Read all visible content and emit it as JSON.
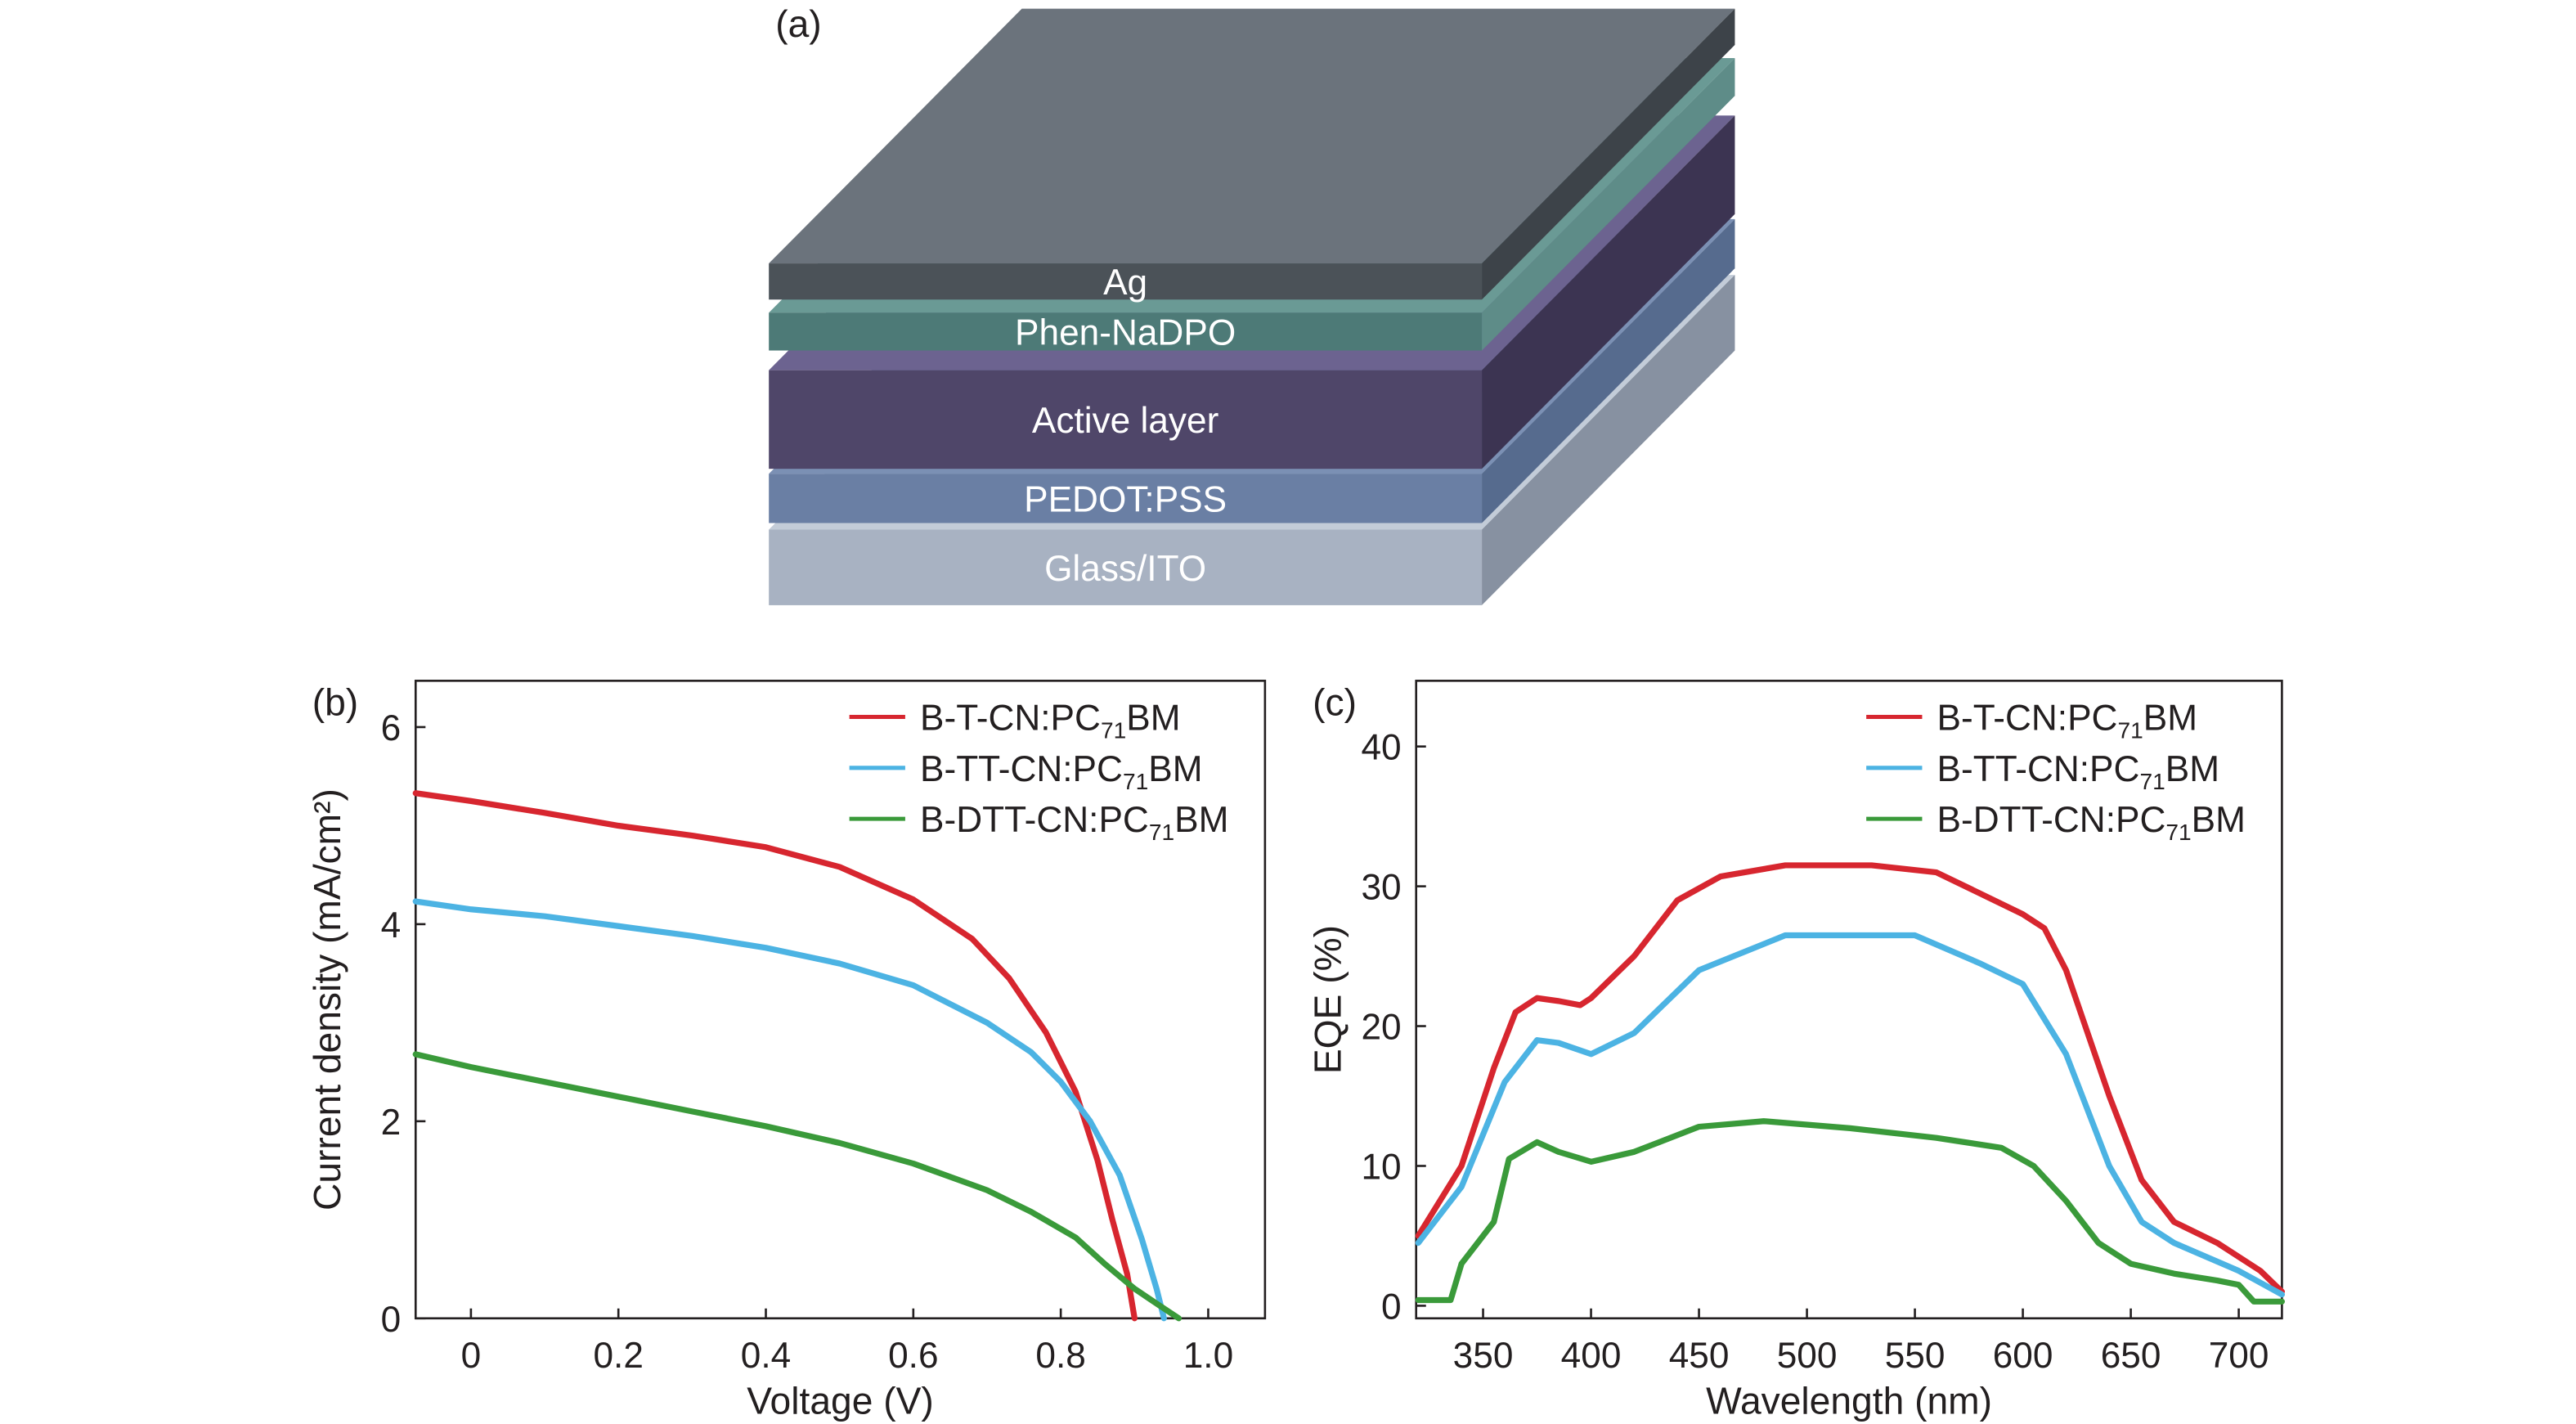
{
  "panel_a": {
    "label": "(a)",
    "layers": [
      {
        "name": "Ag",
        "front": "#4b5258",
        "side": "#3d4349",
        "top": "#6b737c"
      },
      {
        "name": "Phen-NaDPO",
        "front": "#4d7a77",
        "side": "#5e8c88",
        "top": "#6a9a95"
      },
      {
        "name": "Active layer",
        "front": "#4f4669",
        "side": "#3c3452",
        "top": "#6c6390"
      },
      {
        "name": "PEDOT:PSS",
        "front": "#6a7fa4",
        "side": "#566b8e",
        "top": "#7b90b4"
      },
      {
        "name": "Glass/ITO",
        "front": "#a8b2c2",
        "side": "#8791a1",
        "top": "#c3ccd8"
      }
    ]
  },
  "chart_data": [
    {
      "panel_label": "(b)",
      "type": "line",
      "xlabel": "Voltage (V)",
      "ylabel": "Current density (mA/cm²)",
      "xlim": [
        -0.075,
        1.077
      ],
      "ylim": [
        0,
        6.47
      ],
      "xticks": [
        "0",
        "0.2",
        "0.4",
        "0.6",
        "0.8",
        "1.0"
      ],
      "xtick_values": [
        0,
        0.2,
        0.4,
        0.6,
        0.8,
        1.0
      ],
      "yticks": [
        "0",
        "2",
        "4",
        "6"
      ],
      "ytick_values": [
        0,
        2,
        4,
        6
      ],
      "legend": "top-right",
      "grid": false,
      "series": [
        {
          "name": "B-T-CN:PC71BM",
          "name_pre": "B-T-CN:PC",
          "name_sub": "71",
          "name_post": "BM",
          "color": "#d7262f",
          "x": [
            -0.075,
            0,
            0.1,
            0.2,
            0.3,
            0.4,
            0.5,
            0.6,
            0.68,
            0.73,
            0.78,
            0.82,
            0.85,
            0.87,
            0.89,
            0.9
          ],
          "y": [
            5.33,
            5.25,
            5.13,
            5.0,
            4.9,
            4.78,
            4.58,
            4.25,
            3.85,
            3.45,
            2.9,
            2.3,
            1.6,
            1.0,
            0.45,
            0
          ]
        },
        {
          "name": "B-TT-CN:PC71BM",
          "name_pre": "B-TT-CN:PC",
          "name_sub": "71",
          "name_post": "BM",
          "color": "#4cb3e3",
          "x": [
            -0.075,
            0,
            0.1,
            0.2,
            0.3,
            0.4,
            0.5,
            0.6,
            0.7,
            0.76,
            0.8,
            0.84,
            0.88,
            0.91,
            0.93,
            0.94
          ],
          "y": [
            4.23,
            4.15,
            4.08,
            3.98,
            3.88,
            3.76,
            3.6,
            3.38,
            3.0,
            2.7,
            2.4,
            2.0,
            1.45,
            0.8,
            0.3,
            0
          ]
        },
        {
          "name": "B-DTT-CN:PC71BM",
          "name_pre": "B-DTT-CN:PC",
          "name_sub": "71",
          "name_post": "BM",
          "color": "#3a9a3a",
          "x": [
            -0.075,
            0,
            0.1,
            0.2,
            0.3,
            0.4,
            0.5,
            0.6,
            0.7,
            0.76,
            0.82,
            0.86,
            0.9,
            0.93,
            0.96
          ],
          "y": [
            2.68,
            2.55,
            2.4,
            2.25,
            2.1,
            1.95,
            1.78,
            1.57,
            1.3,
            1.08,
            0.82,
            0.55,
            0.3,
            0.15,
            0
          ]
        }
      ]
    },
    {
      "panel_label": "(c)",
      "type": "line",
      "xlabel": "Wavelength (nm)",
      "ylabel": "EQE (%)",
      "xlim": [
        319,
        720
      ],
      "ylim": [
        -0.9,
        44.7
      ],
      "xticks": [
        "350",
        "400",
        "450",
        "500",
        "550",
        "600",
        "650",
        "700"
      ],
      "xtick_values": [
        350,
        400,
        450,
        500,
        550,
        600,
        650,
        700
      ],
      "yticks": [
        "0",
        "10",
        "20",
        "30",
        "40"
      ],
      "ytick_values": [
        0,
        10,
        20,
        30,
        40
      ],
      "legend": "top-right",
      "grid": false,
      "series": [
        {
          "name": "B-T-CN:PC71BM",
          "name_pre": "B-T-CN:PC",
          "name_sub": "71",
          "name_post": "BM",
          "color": "#d7262f",
          "x": [
            320,
            340,
            355,
            365,
            375,
            385,
            395,
            400,
            420,
            440,
            460,
            490,
            530,
            560,
            580,
            600,
            610,
            620,
            640,
            655,
            670,
            690,
            710,
            720
          ],
          "y": [
            5,
            10,
            17,
            21,
            22,
            21.8,
            21.5,
            22,
            25,
            29,
            30.7,
            31.5,
            31.5,
            31,
            29.5,
            28,
            27,
            24,
            15,
            9,
            6,
            4.5,
            2.5,
            1
          ]
        },
        {
          "name": "B-TT-CN:PC71BM",
          "name_pre": "B-TT-CN:PC",
          "name_sub": "71",
          "name_post": "BM",
          "color": "#4cb3e3",
          "x": [
            320,
            340,
            360,
            375,
            385,
            400,
            420,
            450,
            490,
            550,
            580,
            600,
            620,
            640,
            655,
            670,
            700,
            720
          ],
          "y": [
            4.5,
            8.5,
            16,
            19,
            18.8,
            18,
            19.5,
            24,
            26.5,
            26.5,
            24.5,
            23,
            18,
            10,
            6,
            4.5,
            2.5,
            0.8
          ]
        },
        {
          "name": "B-DTT-CN:PC71BM",
          "name_pre": "B-DTT-CN:PC",
          "name_sub": "71",
          "name_post": "BM",
          "color": "#3a9a3a",
          "x": [
            320,
            335,
            340,
            355,
            362,
            375,
            385,
            400,
            420,
            450,
            480,
            520,
            560,
            590,
            605,
            620,
            635,
            650,
            670,
            690,
            700,
            707,
            720
          ],
          "y": [
            0.4,
            0.4,
            3,
            6,
            10.5,
            11.7,
            11,
            10.3,
            11,
            12.8,
            13.2,
            12.7,
            12,
            11.3,
            10,
            7.5,
            4.5,
            3,
            2.3,
            1.8,
            1.5,
            0.3,
            0.3
          ]
        }
      ]
    }
  ]
}
